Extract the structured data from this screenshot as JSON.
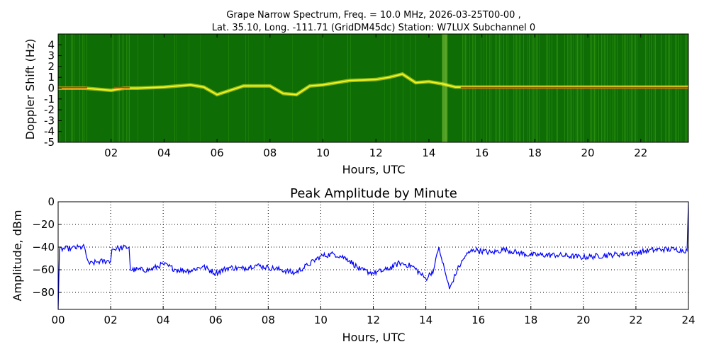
{
  "figure": {
    "title_line1": "Grape Narrow Spectrum, Freq. = 10.0 MHz, 2026-03-25T00-00 ,",
    "title_line2": "Lat.  35.10, Long. -111.71 (GridDM45dc) Station: W7LUX Subchannel 0"
  },
  "colors": {
    "spectrogram_background": "#0e6e05",
    "spectrogram_speckle": "#3aa014",
    "spectrogram_trace_yellow": "#f2f222",
    "spectrogram_trace_red": "#ee2a10",
    "amplitude_line": "#0000ff",
    "grid": "#000000"
  },
  "chart_data": [
    {
      "type": "heatmap",
      "title": "",
      "xlabel": "Hours, UTC",
      "ylabel": "Doppler Shift (Hz)",
      "xlim": [
        0,
        23.8
      ],
      "ylim": [
        -5,
        5
      ],
      "x_ticks": [
        "02",
        "04",
        "06",
        "08",
        "10",
        "12",
        "14",
        "16",
        "18",
        "20",
        "22"
      ],
      "x_tick_values": [
        2,
        4,
        6,
        8,
        10,
        12,
        14,
        16,
        18,
        20,
        22
      ],
      "y_ticks": [
        "4",
        "3",
        "2",
        "1",
        "0",
        "-1",
        "-2",
        "-3",
        "-4",
        "-5"
      ],
      "y_tick_values": [
        4,
        3,
        2,
        1,
        0,
        -1,
        -2,
        -3,
        -4,
        -5
      ],
      "grid": false,
      "doppler_trace": {
        "x": [
          0,
          1,
          2,
          2.5,
          3,
          4,
          5,
          5.5,
          6,
          7,
          8,
          8.5,
          9,
          9.5,
          10,
          11,
          12,
          12.5,
          13,
          13.5,
          14,
          14.5,
          15,
          16,
          18,
          20,
          22,
          23.8
        ],
        "y": [
          0,
          0,
          -0.2,
          0,
          0,
          0.1,
          0.3,
          0.1,
          -0.6,
          0.2,
          0.2,
          -0.5,
          -0.6,
          0.2,
          0.3,
          0.7,
          0.8,
          1.0,
          1.3,
          0.5,
          0.6,
          0.4,
          0.1,
          0.1,
          0.1,
          0.1,
          0.1,
          0.1
        ]
      },
      "wideband_noise_bands_hours": [
        [
          0,
          1.1
        ],
        [
          2.2,
          2.7
        ],
        [
          14.5,
          14.7
        ],
        [
          15.0,
          23.8
        ]
      ]
    },
    {
      "type": "line",
      "title": "Peak Amplitude by Minute",
      "xlabel": "Hours, UTC",
      "ylabel": "Amplitude, dBm",
      "xlim": [
        0,
        24
      ],
      "ylim": [
        -95,
        0
      ],
      "x_ticks": [
        "00",
        "02",
        "04",
        "06",
        "08",
        "10",
        "12",
        "14",
        "16",
        "18",
        "20",
        "22",
        "24"
      ],
      "x_tick_values": [
        0,
        2,
        4,
        6,
        8,
        10,
        12,
        14,
        16,
        18,
        20,
        22,
        24
      ],
      "y_ticks": [
        "0",
        "−20",
        "−40",
        "−60",
        "−80"
      ],
      "y_tick_values": [
        0,
        -20,
        -40,
        -60,
        -80
      ],
      "grid": true,
      "series": [
        {
          "x": [
            0,
            0.05,
            0.5,
            1.0,
            1.1,
            1.2,
            1.5,
            2.0,
            2.05,
            2.3,
            2.7,
            2.75,
            3.5,
            4.0,
            4.5,
            5.0,
            5.5,
            6.0,
            6.5,
            7.0,
            7.5,
            8.0,
            8.5,
            9.0,
            9.5,
            10.0,
            10.5,
            11.0,
            11.5,
            12.0,
            12.5,
            13.0,
            13.5,
            14.0,
            14.3,
            14.5,
            14.6,
            14.9,
            15.2,
            15.5,
            15.8,
            16.5,
            17.0,
            17.5,
            18.0,
            19.0,
            20.0,
            21.0,
            22.0,
            22.5,
            23.0,
            23.5,
            23.95,
            24.0
          ],
          "y": [
            -95,
            -42,
            -41,
            -40,
            -50,
            -55,
            -53,
            -52,
            -42,
            -41,
            -40,
            -60,
            -60,
            -55,
            -60,
            -61,
            -57,
            -63,
            -58,
            -59,
            -56,
            -58,
            -60,
            -63,
            -56,
            -48,
            -46,
            -50,
            -60,
            -63,
            -60,
            -54,
            -57,
            -68,
            -60,
            -40,
            -50,
            -77,
            -60,
            -48,
            -42,
            -45,
            -42,
            -45,
            -47,
            -47,
            -49,
            -47,
            -45,
            -43,
            -42,
            -42,
            -43,
            0
          ]
        }
      ]
    }
  ]
}
